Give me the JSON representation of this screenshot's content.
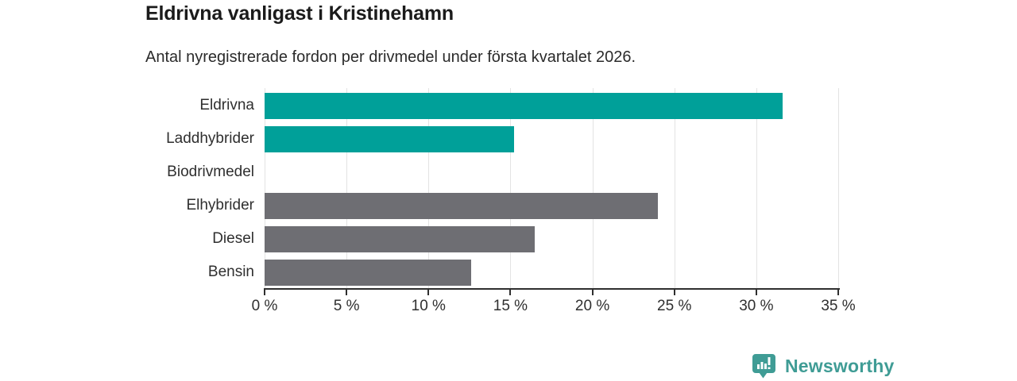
{
  "header": {
    "title": "Eldrivna vanligast i Kristinehamn",
    "subtitle": "Antal nyregistrerade fordon per drivmedel under första kvartalet 2026."
  },
  "chart_data": {
    "type": "bar",
    "orientation": "horizontal",
    "title": "Eldrivna vanligast i Kristinehamn",
    "subtitle": "Antal nyregistrerade fordon per drivmedel under första kvartalet 2026.",
    "categories": [
      "Eldrivna",
      "Laddhybrider",
      "Biodrivmedel",
      "Elhybrider",
      "Diesel",
      "Bensin"
    ],
    "values": [
      31.6,
      15.2,
      0,
      24.0,
      16.5,
      12.6
    ],
    "unit": "%",
    "bar_colors": [
      "#00a099",
      "#00a099",
      "#00a099",
      "#6e6e73",
      "#6e6e73",
      "#6e6e73"
    ],
    "xlabel": "",
    "ylabel": "",
    "xlim": [
      0,
      35
    ],
    "x_tick_values": [
      0,
      5,
      10,
      15,
      20,
      25,
      30,
      35
    ],
    "x_tick_labels": [
      "0 %",
      "5 %",
      "10 %",
      "15 %",
      "20 %",
      "25 %",
      "30 %",
      "35 %"
    ],
    "grid": true,
    "legend": false
  },
  "branding": {
    "logo_text": "Newsworthy",
    "logo_icon": "bar-chart-pin-icon",
    "logo_color": "#3f9c95"
  },
  "colors": {
    "accent_teal": "#00a099",
    "neutral_gray": "#6e6e73",
    "grid": "#e3e3e3",
    "axis": "#2f2f2f",
    "title_text": "#1b1b1b"
  }
}
